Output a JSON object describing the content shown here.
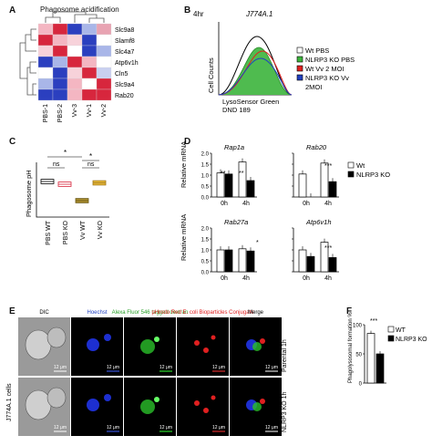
{
  "panels": {
    "A": {
      "label": "A",
      "title": "Phagosome acidification",
      "rows": [
        "Slc9a8",
        "Slamf8",
        "Slc4a7",
        "Atp6v1h",
        "Cln5",
        "Slc9a4",
        "Rab20"
      ],
      "cols": [
        "PBS-1",
        "PBS-2",
        "Vv-3",
        "Vv-1",
        "Vv-2"
      ],
      "colors": {
        "high": "#d7263d",
        "mid": "#f4b6c2",
        "white": "#ffffff",
        "lowmid": "#a9b6e8",
        "low": "#2b3fbf"
      },
      "matrix": [
        [
          "#f4b6c2",
          "#d7263d",
          "#2b3fbf",
          "#a9b6e8",
          "#e8a3b2"
        ],
        [
          "#d7263d",
          "#f4b6c2",
          "#f7d2da",
          "#2b3fbf",
          "#ffffff"
        ],
        [
          "#f7d2da",
          "#d7263d",
          "#ffffff",
          "#2b3fbf",
          "#a9b6e8"
        ],
        [
          "#2b3fbf",
          "#a9b6e8",
          "#d7263d",
          "#f4b6c2",
          "#ffffff"
        ],
        [
          "#ffffff",
          "#2b3fbf",
          "#f7d2da",
          "#d7263d",
          "#c9d0f0"
        ],
        [
          "#a9b6e8",
          "#2b3fbf",
          "#f4b6c2",
          "#ffffff",
          "#d7263d"
        ],
        [
          "#2b3fbf",
          "#2b3fbf",
          "#f4b6c2",
          "#d7263d",
          "#d7263d"
        ]
      ]
    },
    "B": {
      "label": "B",
      "time": "4hr",
      "cell": "J774A.1",
      "ylabel": "Cell Counts",
      "xlabel_line1": "LysoSensor Green",
      "xlabel_line2": "DND 189",
      "legend": [
        {
          "text": "Wt PBS",
          "color": "#ffffff"
        },
        {
          "text": "NLRP3 KO PBS",
          "color": "#3cb43c"
        },
        {
          "text": "Wt Vv 2 MOI",
          "color": "#e02020"
        },
        {
          "text": "NLRP3 KO Vv",
          "color": "#2040c0"
        }
      ],
      "legend_extra": "2MOI"
    },
    "C": {
      "label": "C",
      "ylabel": "Phagosome pH",
      "categories": [
        "PBS WT",
        "PBS KO",
        "Vv WT",
        "Vv KO"
      ],
      "ns1": "ns",
      "ns2": "ns",
      "star1": "*",
      "star2": "*"
    },
    "D": {
      "label": "D",
      "genes": [
        "Rap1a",
        "Rab20",
        "Rab27a",
        "Atp6v1h"
      ],
      "ylabel": "Relative mRNA",
      "ticks": [
        "0h",
        "4h"
      ],
      "legend": [
        "Wt",
        "NLRP3 KO"
      ],
      "sig": [
        "**",
        "**",
        "***",
        "*",
        "***"
      ],
      "yticks": [
        "0.0",
        "0.5",
        "1.0",
        "1.5",
        "2.0"
      ]
    },
    "E": {
      "label": "E",
      "headers": [
        "DIC",
        "Hoechst",
        "Alexa  Fluor  546 tagged dextran",
        "pHrodo Red E. coli Bioparticles Conjugate",
        "Merge"
      ],
      "row_labels": [
        "Parental 1h",
        "NLRP3 KO 1h"
      ],
      "side_label": "J774A.1 cells",
      "scale": "12 μm"
    },
    "F": {
      "label": "F",
      "ylabel": "Phagolysosomal formation %",
      "legend": [
        "WT",
        "NLRP3 KO"
      ],
      "sig": "***",
      "yticks": [
        "0",
        "50",
        "100"
      ]
    }
  },
  "chart_data": [
    {
      "type": "box",
      "title": "",
      "ylabel": "Phagosome pH",
      "categories": [
        "PBS WT",
        "PBS KO",
        "Vv WT",
        "Vv KO"
      ],
      "values": [
        4.3,
        4.2,
        3.6,
        4.25
      ],
      "ylim": [
        3.0,
        5.0
      ]
    },
    {
      "type": "bar",
      "title": "Rap1a",
      "categories": [
        "0h",
        "4h"
      ],
      "series": [
        {
          "name": "Wt",
          "values": [
            1.1,
            1.6
          ]
        },
        {
          "name": "NLRP3 KO",
          "values": [
            1.05,
            0.75
          ]
        }
      ],
      "ylim": [
        0,
        2.0
      ]
    },
    {
      "type": "bar",
      "title": "Rab20",
      "categories": [
        "0h",
        "4h"
      ],
      "series": [
        {
          "name": "Wt",
          "values": [
            1.05,
            1.55
          ]
        },
        {
          "name": "NLRP3 KO",
          "values": [
            0.0,
            0.7
          ]
        }
      ],
      "ylim": [
        0,
        2.0
      ]
    },
    {
      "type": "bar",
      "title": "Rab27a",
      "categories": [
        "0h",
        "4h"
      ],
      "series": [
        {
          "name": "Wt",
          "values": [
            1.0,
            1.05
          ]
        },
        {
          "name": "NLRP3 KO",
          "values": [
            1.0,
            0.95
          ]
        }
      ],
      "ylim": [
        0,
        2.0
      ]
    },
    {
      "type": "bar",
      "title": "Atp6v1h",
      "categories": [
        "0h",
        "4h"
      ],
      "series": [
        {
          "name": "Wt",
          "values": [
            1.0,
            1.35
          ]
        },
        {
          "name": "NLRP3 KO",
          "values": [
            0.7,
            0.65
          ]
        }
      ],
      "ylim": [
        0,
        2.0
      ]
    },
    {
      "type": "bar",
      "title": "",
      "ylabel": "Phagolysosomal formation %",
      "categories": [
        "WT",
        "NLRP3 KO"
      ],
      "values": [
        85,
        50
      ],
      "ylim": [
        0,
        100
      ]
    }
  ]
}
